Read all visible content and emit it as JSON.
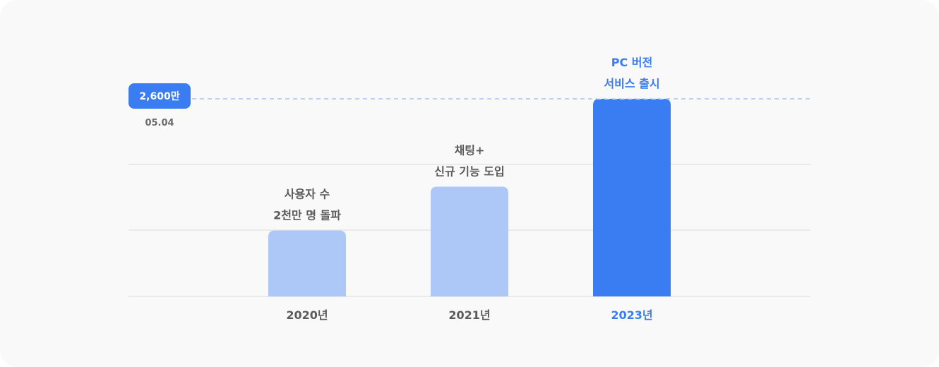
{
  "chart_data": {
    "type": "bar",
    "categories": [
      "2020년",
      "2021년",
      "2023년"
    ],
    "values": [
      2000,
      2200,
      2600
    ],
    "annotations": [
      [
        "사용자 수",
        "2천만 명 돌파"
      ],
      [
        "채팅+",
        "신규 기능 도입"
      ],
      [
        "PC 버전",
        "서비스 출시"
      ]
    ],
    "highlight_index": 2,
    "reference_line": {
      "value": 2600,
      "label": "2,600만",
      "date": "05.04",
      "style": "dashed"
    },
    "ylim": [
      1700,
      2700
    ],
    "grid": true,
    "axis_labels_visible": false,
    "colors": {
      "bar": "#adc8f7",
      "bar_highlight": "#3a7cf2",
      "text": "#5b5b5b",
      "text_highlight": "#3a7cf2",
      "gridline": "#dcdcdc",
      "reference_line": "#a9c3ea",
      "badge_bg": "#3a7cf2",
      "background": "#f9f9f9"
    }
  }
}
